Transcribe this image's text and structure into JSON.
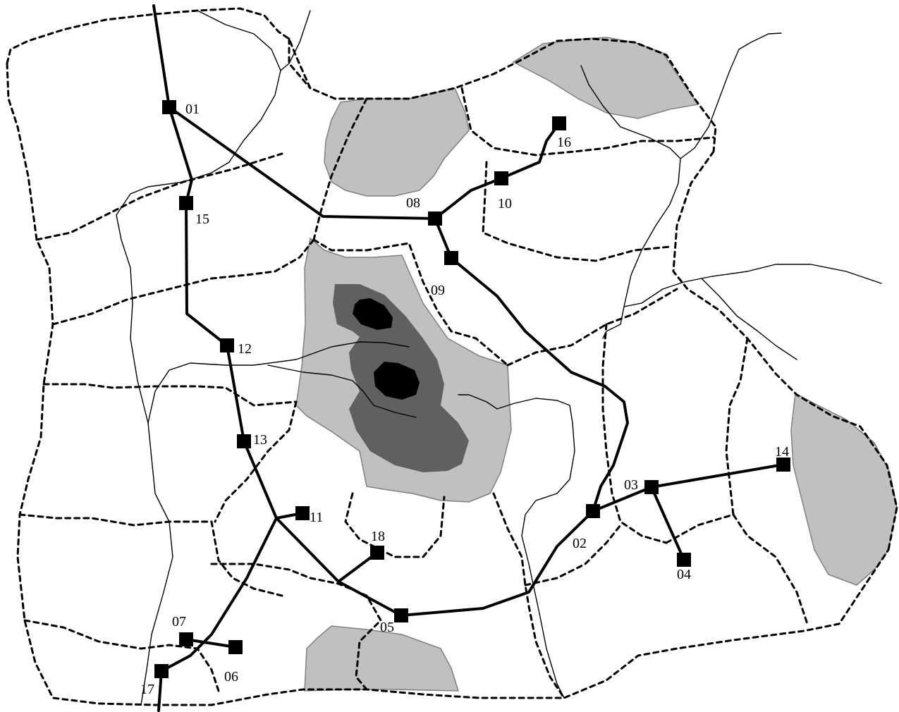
{
  "colors": {
    "background": "#ffffff",
    "zone_light": "#c0c0c0",
    "zone_mid": "#606060",
    "zone_dark": "#000000",
    "lines": "#000000"
  },
  "stations": [
    {
      "id": "01",
      "label": "01"
    },
    {
      "id": "02",
      "label": "02"
    },
    {
      "id": "03",
      "label": "03"
    },
    {
      "id": "04",
      "label": "04"
    },
    {
      "id": "05",
      "label": "05"
    },
    {
      "id": "06",
      "label": "06"
    },
    {
      "id": "07",
      "label": "07"
    },
    {
      "id": "08",
      "label": "08"
    },
    {
      "id": "09",
      "label": "09"
    },
    {
      "id": "10",
      "label": "10"
    },
    {
      "id": "11",
      "label": "11"
    },
    {
      "id": "12",
      "label": "12"
    },
    {
      "id": "13",
      "label": "13"
    },
    {
      "id": "14",
      "label": "14"
    },
    {
      "id": "15",
      "label": "15"
    },
    {
      "id": "16",
      "label": "16"
    },
    {
      "id": "17",
      "label": "17"
    },
    {
      "id": "18",
      "label": "18"
    }
  ]
}
